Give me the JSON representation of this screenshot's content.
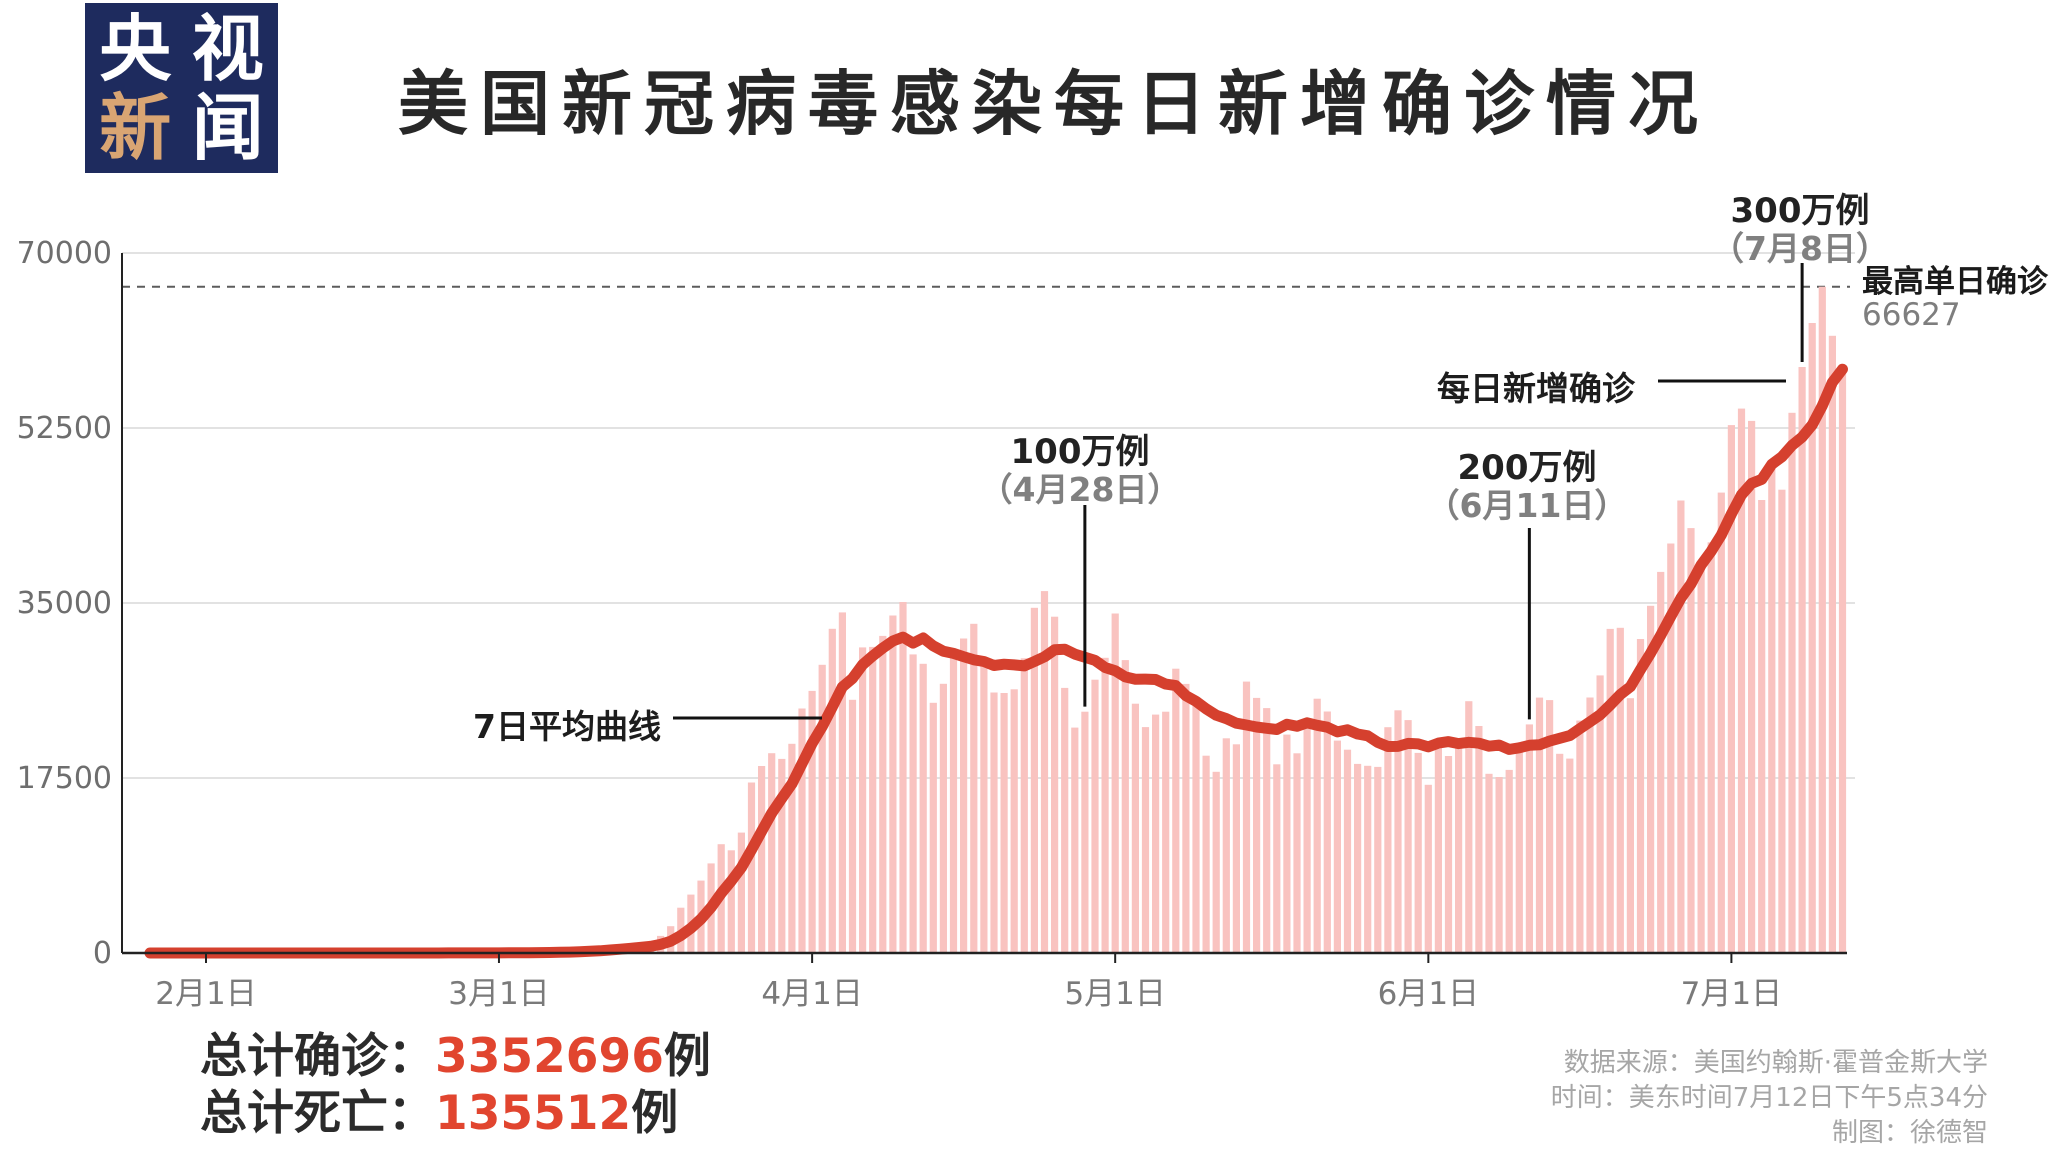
{
  "logo": {
    "chars": [
      {
        "text": "央",
        "color": "#ffffff"
      },
      {
        "text": "视",
        "color": "#ffffff"
      },
      {
        "text": "新",
        "color": "#d9a573"
      },
      {
        "text": "闻",
        "color": "#ffffff"
      }
    ],
    "bg_color": "#1e2b5e"
  },
  "title": "美国新冠病毒感染每日新增确诊情况",
  "chart_data": {
    "type": "bar",
    "title": "美国新冠病毒感染每日新增确诊情况",
    "grid": true,
    "ylim": [
      0,
      70000
    ],
    "ytick_values": [
      0,
      17500,
      35000,
      52500,
      70000
    ],
    "xtick_labels": [
      "2月1日",
      "3月1日",
      "4月1日",
      "5月1日",
      "6月1日",
      "7月1日"
    ],
    "xtick_day_index": [
      0,
      29,
      60,
      90,
      121,
      151
    ],
    "x_range": "2月1日 至 7月12日",
    "max_daily_value": 66627,
    "bar_color": "#f9c3c0",
    "line_color": "#d5402e",
    "series": [
      {
        "name": "每日新增确诊",
        "type": "bar",
        "values": [
          1,
          0,
          3,
          0,
          0,
          2,
          0,
          0,
          1,
          2,
          0,
          0,
          4,
          1,
          0,
          0,
          5,
          2,
          0,
          0,
          6,
          8,
          11,
          7,
          10,
          3,
          14,
          6,
          19,
          24,
          30,
          40,
          55,
          75,
          105,
          140,
          196,
          260,
          340,
          450,
          580,
          680,
          770,
          832,
          992,
          1706,
          2680,
          4529,
          5836,
          7235,
          8960,
          10878,
          10270,
          12038,
          17050,
          18695,
          19979,
          19408,
          20921,
          24450,
          26211,
          28819,
          32425,
          34058,
          25316,
          30561,
          30613,
          31709,
          33752,
          35098,
          29861,
          28917,
          25023,
          26922,
          30136,
          31451,
          32922,
          28712,
          26050,
          25995,
          26373,
          29468,
          34519,
          36188,
          33630,
          26509,
          22541,
          24132,
          27327,
          29517,
          33955,
          29288,
          24926,
          22593,
          23841,
          24128,
          28427,
          26906,
          25337,
          19731,
          18117,
          21467,
          20869,
          27143,
          25508,
          24487,
          18873,
          21841,
          19970,
          23285,
          25434,
          24147,
          21236,
          20328,
          18910,
          18721,
          18611,
          22577,
          24266,
          23290,
          20007,
          16820,
          21329,
          19699,
          21140,
          25176,
          22695,
          17919,
          17598,
          18308,
          20801,
          22860,
          25540,
          25288,
          19920,
          19441,
          23243,
          25555,
          27762,
          32411,
          32523,
          25476,
          31402,
          34720,
          38115,
          40949,
          45255,
          42486,
          38671,
          41075,
          46042,
          52788,
          54442,
          53213,
          45300,
          49199,
          46329,
          54020,
          58601,
          63004,
          66627,
          61719,
          58349
        ]
      },
      {
        "name": "7日平均曲线",
        "type": "line",
        "derived": "7-day moving average of daily values"
      }
    ]
  },
  "annotations": {
    "avg_line_label": "7日平均曲线",
    "daily_label": "每日新增确诊",
    "m1": {
      "label": "100万例",
      "date": "（4月28日）",
      "day_index": 87
    },
    "m2": {
      "label": "200万例",
      "date": "（6月11日）",
      "day_index": 131
    },
    "m3": {
      "label": "300万例",
      "date": "（7月8日）",
      "day_index": 158
    },
    "peak": {
      "label": "最高单日确诊",
      "value": "66627"
    }
  },
  "footer": {
    "stats": [
      {
        "label": "总计确诊：",
        "value": "3352696",
        "unit": "例"
      },
      {
        "label": "总计死亡：",
        "value": "135512",
        "unit": "例"
      }
    ],
    "source_lines": [
      "数据来源：美国约翰斯·霍普金斯大学",
      "时间：美东时间7月12日下午5点34分",
      "制图：徐德智"
    ]
  },
  "colors": {
    "bar": "#f9c3c0",
    "curve": "#d5402e",
    "stat_number": "#e1452f",
    "grid": "#d9d9d9",
    "axis": "#222222",
    "dashed": "#5c5c5c",
    "logo_bg": "#1e2b5e",
    "logo_tan": "#d9a573"
  }
}
